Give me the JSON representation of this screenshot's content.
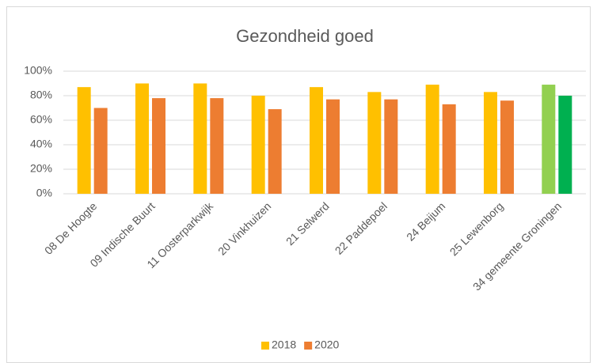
{
  "chart_data": {
    "type": "bar",
    "title": "Gezondheid goed",
    "categories": [
      "08 De Hoogte",
      "09 Indische Buurt",
      "11 Oosterparkwijk",
      "20 Vinkhuizen",
      "21 Selwerd",
      "22 Paddepoel",
      "24 Beijum",
      "25 Lewenborg",
      "34 gemeente Groningen"
    ],
    "series": [
      {
        "name": "2018",
        "color": "#ffc000",
        "values": [
          87,
          90,
          90,
          80,
          87,
          83,
          89,
          83,
          89
        ],
        "colors": [
          "#ffc000",
          "#ffc000",
          "#ffc000",
          "#ffc000",
          "#ffc000",
          "#ffc000",
          "#ffc000",
          "#ffc000",
          "#92d050"
        ]
      },
      {
        "name": "2020",
        "color": "#ed7d31",
        "values": [
          70,
          78,
          78,
          69,
          77,
          77,
          73,
          76,
          80
        ],
        "colors": [
          "#ed7d31",
          "#ed7d31",
          "#ed7d31",
          "#ed7d31",
          "#ed7d31",
          "#ed7d31",
          "#ed7d31",
          "#ed7d31",
          "#00b050"
        ]
      }
    ],
    "ylim": [
      0,
      100
    ],
    "yticks": [
      {
        "value": 0,
        "label": "0%"
      },
      {
        "value": 20,
        "label": "20%"
      },
      {
        "value": 40,
        "label": "40%"
      },
      {
        "value": 60,
        "label": "60%"
      },
      {
        "value": 80,
        "label": "80%"
      },
      {
        "value": 100,
        "label": "100%"
      }
    ],
    "grid": true,
    "legend": "bottom"
  }
}
